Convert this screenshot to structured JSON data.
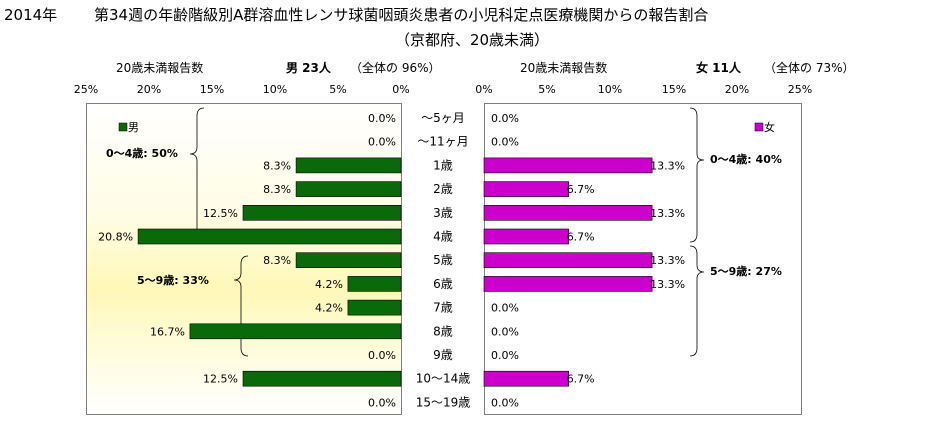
{
  "title": {
    "year": "2014年",
    "main": "第34週の年齢階級別A群溶血性レンサ球菌咽頭炎患者の小児科定点医療機関からの報告割合",
    "subtitle": "（京都府、20歳未満）"
  },
  "male_header": {
    "caption": "20歳未満報告数",
    "summary": "男  23人",
    "share": "（全体の  96%）"
  },
  "female_header": {
    "caption": "20歳未満報告数",
    "summary": "女  11人",
    "share": "（全体の  73%）"
  },
  "legend": {
    "male": "男",
    "female": "女"
  },
  "group_labels": {
    "male_0_4": "0～4歳: 50%",
    "male_5_9": "5～9歳: 33%",
    "female_0_4": "0～4歳: 40%",
    "female_5_9": "5～9歳: 27%"
  },
  "colors": {
    "male": "#0a6a0a",
    "female": "#cc00cc",
    "panel_gradient": "#fff8b8"
  },
  "chart_data": {
    "type": "bar",
    "orientation": "horizontal",
    "layout": "back-to-back",
    "categories": [
      "～5ヶ月",
      "～11ヶ月",
      "1歳",
      "2歳",
      "3歳",
      "4歳",
      "5歳",
      "6歳",
      "7歳",
      "8歳",
      "9歳",
      "10～14歳",
      "15～19歳"
    ],
    "x_ticks_male": [
      "25%",
      "20%",
      "15%",
      "10%",
      "5%",
      "0%"
    ],
    "x_ticks_female": [
      "0%",
      "5%",
      "10%",
      "15%",
      "20%",
      "25%"
    ],
    "xlim": [
      0,
      25
    ],
    "series": [
      {
        "name": "男",
        "values": [
          0.0,
          0.0,
          8.3,
          8.3,
          12.5,
          20.8,
          8.3,
          4.2,
          4.2,
          16.7,
          0.0,
          12.5,
          0.0
        ],
        "labels": [
          "0.0%",
          "0.0%",
          "8.3%",
          "8.3%",
          "12.5%",
          "20.8%",
          "8.3%",
          "4.2%",
          "4.2%",
          "16.7%",
          "0.0%",
          "12.5%",
          "0.0%"
        ]
      },
      {
        "name": "女",
        "values": [
          0.0,
          0.0,
          13.3,
          6.7,
          13.3,
          6.7,
          13.3,
          13.3,
          0.0,
          0.0,
          0.0,
          6.7,
          0.0
        ],
        "labels": [
          "0.0%",
          "0.0%",
          "13.3%",
          "6.7%",
          "13.3%",
          "6.7%",
          "13.3%",
          "13.3%",
          "0.0%",
          "0.0%",
          "0.0%",
          "6.7%",
          "0.0%"
        ]
      }
    ]
  }
}
